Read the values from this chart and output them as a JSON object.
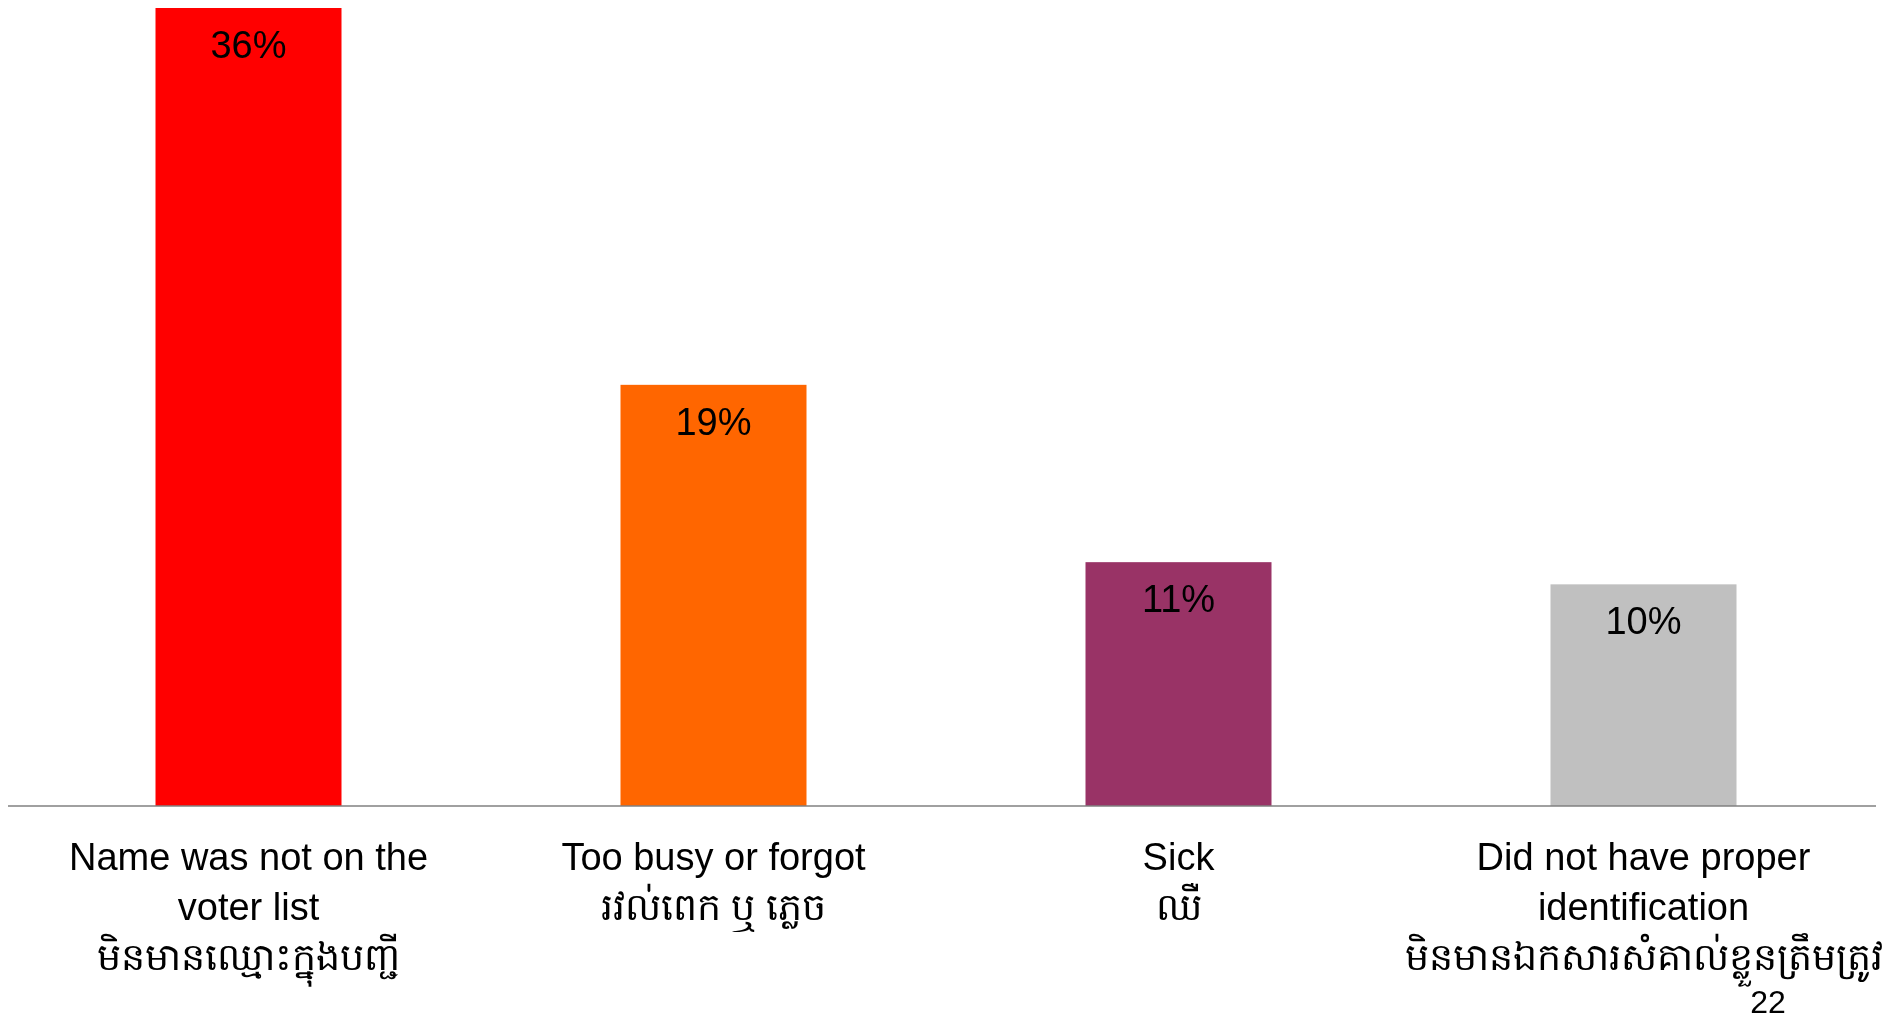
{
  "chart_data": {
    "type": "bar",
    "categories": [
      "Name was not on the\nvoter list\nមិនមានឈ្មោះក្នុងបញ្ជី",
      "Too busy or forgot\nរវល់ពេក ឬ ភ្លេច",
      "Sick\nឈឺ",
      "Did not have proper\nidentification\nមិនមានឯកសារសំគាល់ខ្លួនត្រឹមត្រូវ"
    ],
    "values": [
      36,
      19,
      11,
      10
    ],
    "colors": [
      "#ff0000",
      "#ff6600",
      "#993366",
      "#c0c0c0"
    ],
    "value_labels": [
      "36%",
      "19%",
      "11%",
      "10%"
    ],
    "annotations": [
      "22"
    ]
  }
}
